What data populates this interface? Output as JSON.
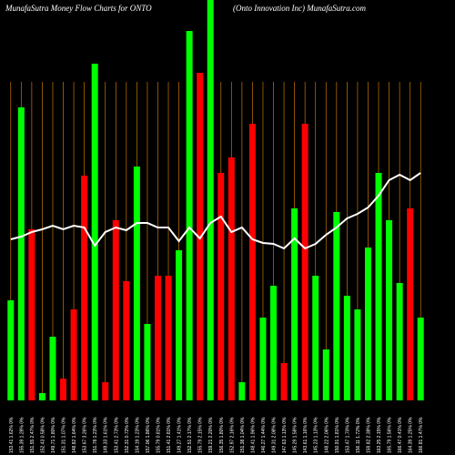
{
  "chart_data": {
    "type": "bar",
    "title": "MunafaSutra  Money Flow  Charts for ONTO",
    "subtitle": "(Onto  Innovation  Inc) MunafaSutra.com",
    "categories": [
      "153.41 1.62% 0%",
      "155.39 1.28% 0%",
      "151.55 2.47% 0%",
      "152.43 0.58% 0%",
      "149.71 1.80% 0%",
      "151.31 1.07% 0%",
      "148.82 1.64% 0%",
      "153.67 3.26% 0%",
      "151.78 1.23% 0%",
      "149.33 1.61% 0%",
      "153.41 2.73% 0%",
      "152.31 0.72% 0%",
      "154.19 1.23% 0%",
      "157.06 1.86% 0%",
      "155.79 0.81% 0%",
      "151.41 2.81% 0%",
      "149.27 1.41% 0%",
      "152.51 2.17% 0%",
      "155.79 2.15% 0%",
      "159.21 2.20% 0%",
      "156.35 1.80% 0%",
      "152.97 2.16% 0%",
      "151.38 1.04% 0%",
      "148.41 1.96% 0%",
      "146.27 1.44% 0%",
      "149.31 2.08% 0%",
      "147.63 1.13% 0%",
      "145.29 1.58% 0%",
      "143.61 1.16% 0%",
      "145.23 1.13% 0%",
      "148.22 2.06% 0%",
      "150.91 1.81% 0%",
      "153.47 1.70% 0%",
      "156.11 1.72% 0%",
      "159.82 2.38% 0%",
      "163.25 2.15% 0%",
      "165.79 1.56% 0%",
      "166.47 0.41% 0%",
      "164.39 1.25% 0%",
      "166.81 1.47% 0%"
    ],
    "values": [
      110,
      322,
      188,
      8,
      70,
      24,
      100,
      247,
      370,
      20,
      198,
      131,
      257,
      84,
      137,
      137,
      165,
      406,
      360,
      440,
      250,
      267,
      20,
      304,
      91,
      126,
      41,
      211,
      304,
      137,
      56,
      207,
      115,
      100,
      168,
      250,
      198,
      129,
      211,
      91
    ],
    "colors": [
      "#00ff00",
      "#00ff00",
      "#ff0000",
      "#00ff00",
      "#00ff00",
      "#ff0000",
      "#ff0000",
      "#ff0000",
      "#00ff00",
      "#ff0000",
      "#ff0000",
      "#ff0000",
      "#00ff00",
      "#00ff00",
      "#ff0000",
      "#ff0000",
      "#00ff00",
      "#00ff00",
      "#ff0000",
      "#00ff00",
      "#ff0000",
      "#ff0000",
      "#00ff00",
      "#ff0000",
      "#00ff00",
      "#00ff00",
      "#ff0000",
      "#00ff00",
      "#ff0000",
      "#00ff00",
      "#00ff00",
      "#00ff00",
      "#00ff00",
      "#00ff00",
      "#00ff00",
      "#00ff00",
      "#00ff00",
      "#00ff00",
      "#ff0000",
      "#00ff00"
    ],
    "line_values": [
      177,
      180,
      185,
      188,
      192,
      188,
      192,
      190,
      170,
      185,
      190,
      187,
      195,
      195,
      190,
      190,
      175,
      190,
      178,
      195,
      202,
      185,
      190,
      177,
      173,
      172,
      167,
      178,
      167,
      172,
      182,
      190,
      200,
      205,
      212,
      225,
      242,
      248,
      242,
      250
    ],
    "line_color": "#ffffff",
    "grid_color": "#c87800",
    "ylim": [
      0,
      440
    ]
  }
}
